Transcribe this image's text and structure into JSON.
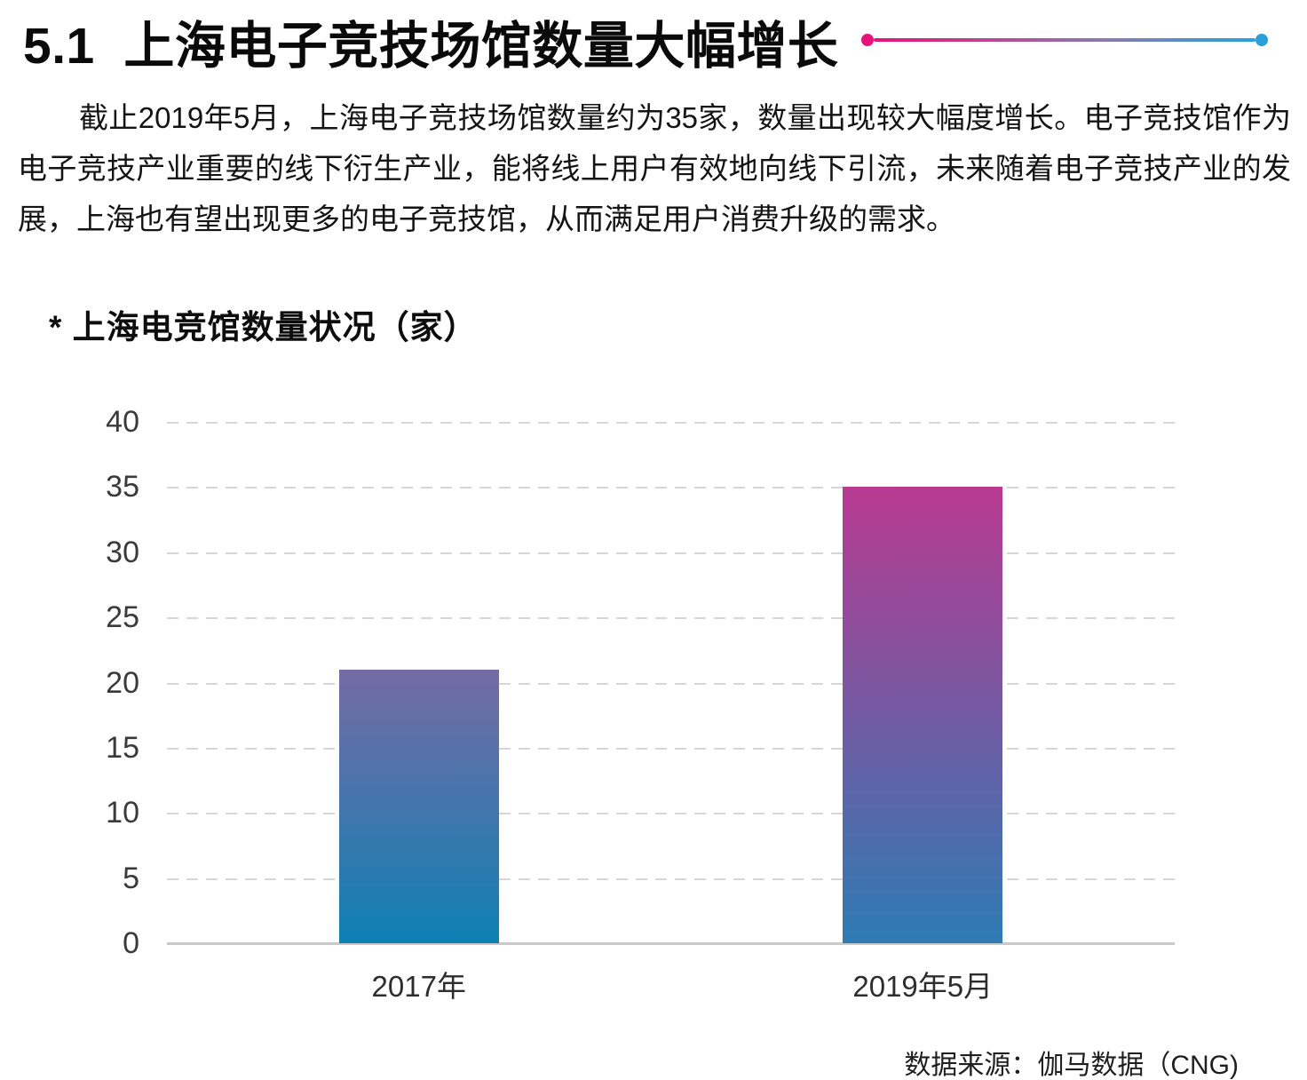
{
  "header": {
    "title": "5.1  上海电子竞技场馆数量大幅增长"
  },
  "body": {
    "paragraph": "截止2019年5月，上海电子竞技场馆数量约为35家，数量出现较大幅度增长。电子竞技馆作为电子竞技产业重要的线下衍生产业，能将线上用户有效地向线下引流，未来随着电子竞技产业的发展，上海也有望出现更多的电子竞技馆，从而满足用户消费升级的需求。"
  },
  "chart": {
    "subtitle": "* 上海电竞馆数量状况（家）",
    "source": "数据来源：伽马数据（CNG)"
  },
  "chart_data": {
    "type": "bar",
    "title": "上海电竞馆数量状况（家）",
    "categories": [
      "2017年",
      "2019年5月"
    ],
    "values": [
      21,
      35
    ],
    "xlabel": "",
    "ylabel": "",
    "ylim": [
      0,
      40
    ],
    "ytick_step": 5,
    "yticks": [
      0,
      5,
      10,
      15,
      20,
      25,
      30,
      35,
      40
    ],
    "grid": "horizontal-dashed",
    "legend": "none",
    "bar_colors": [
      {
        "top": "#766ba4",
        "bottom": "#0e80b4"
      },
      {
        "top": "#b93a91",
        "bottom": "#2e7bb4"
      }
    ]
  },
  "colors": {
    "accent_gradient_left": "#e8127c",
    "accent_gradient_mid": "#8b79b0",
    "accent_gradient_right": "#2aa0d9",
    "grid_line": "#d6d6d6",
    "axis_line": "#c9c9c9",
    "text": "#141414"
  }
}
